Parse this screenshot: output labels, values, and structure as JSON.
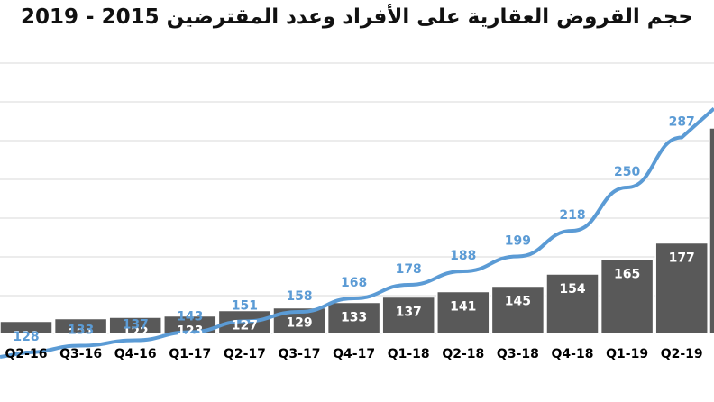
{
  "chart_data": {
    "type": "bar",
    "title": "حجم القروض العقارية على الأفراد وعدد المقترضين 2015 - 2019",
    "categories": [
      "Q2-16",
      "Q3-16",
      "Q4-16",
      "Q1-17",
      "Q2-17",
      "Q3-17",
      "Q4-17",
      "Q1-18",
      "Q2-18",
      "Q3-18",
      "Q4-18",
      "Q1-19",
      "Q2-19"
    ],
    "series": [
      {
        "type": "bar",
        "values": [
          119,
          121,
          122,
          123,
          127,
          129,
          133,
          137,
          141,
          145,
          154,
          165,
          177
        ]
      },
      {
        "type": "line",
        "values": [
          128,
          133,
          137,
          143,
          151,
          158,
          168,
          178,
          188,
          199,
          218,
          250,
          287
        ]
      }
    ],
    "colors": {
      "bars": "#595959",
      "line": "#5b9bd5",
      "line_labels": "#5b9bd5",
      "bar_labels": "#ffffff"
    },
    "grid": true,
    "legend": "none"
  }
}
